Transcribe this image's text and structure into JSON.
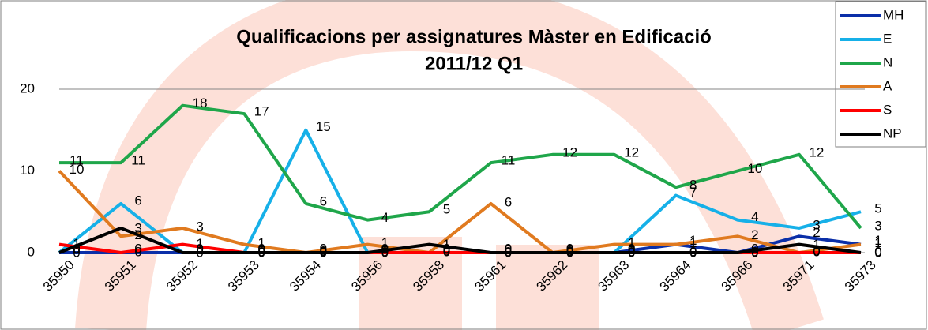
{
  "chart_data": {
    "type": "line",
    "title": [
      "Qualificacions per assignatures  Màster en Edificació",
      "2011/12 Q1"
    ],
    "categories": [
      "35950",
      "35951",
      "35952",
      "35953",
      "35954",
      "35956",
      "35958",
      "35961",
      "35962",
      "35963",
      "35964",
      "35966",
      "35971",
      "35973"
    ],
    "ylim": [
      0,
      20
    ],
    "yticks": [
      0,
      10,
      20
    ],
    "grid": true,
    "series": [
      {
        "name": "MH",
        "color": "#0b2fa8",
        "values": [
          0,
          0,
          0,
          0,
          0,
          0,
          0,
          0,
          0,
          0,
          1,
          0,
          2,
          1
        ]
      },
      {
        "name": "E",
        "color": "#16b0e8",
        "values": [
          0,
          6,
          0,
          0,
          15,
          0,
          0,
          0,
          0,
          0,
          7,
          4,
          3,
          5
        ]
      },
      {
        "name": "N",
        "color": "#1fa64a",
        "values": [
          11,
          11,
          18,
          17,
          6,
          4,
          5,
          11,
          12,
          12,
          8,
          10,
          12,
          3
        ]
      },
      {
        "name": "A",
        "color": "#e07a1f",
        "values": [
          10,
          2,
          3,
          1,
          0,
          1,
          0,
          6,
          0,
          1,
          1,
          2,
          0,
          1
        ]
      },
      {
        "name": "S",
        "color": "#ff0000",
        "values": [
          1,
          0,
          1,
          0,
          0,
          0,
          0,
          0,
          0,
          0,
          0,
          0,
          0,
          0
        ]
      },
      {
        "name": "NP",
        "color": "#000000",
        "values": [
          0,
          3,
          0,
          0,
          0,
          0,
          1,
          0,
          0,
          0,
          0,
          0,
          1,
          0
        ]
      }
    ]
  }
}
